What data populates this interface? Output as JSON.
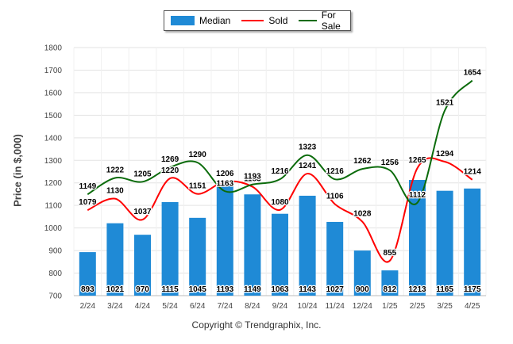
{
  "chart_data": {
    "type": "bar",
    "categories": [
      "2/24",
      "3/24",
      "4/24",
      "5/24",
      "6/24",
      "7/24",
      "8/24",
      "9/24",
      "10/24",
      "11/24",
      "12/24",
      "1/25",
      "2/25",
      "3/25",
      "4/25"
    ],
    "series": [
      {
        "name": "Median",
        "kind": "bar",
        "color": "#1f8ad6",
        "values": [
          893,
          1021,
          970,
          1115,
          1045,
          1193,
          1149,
          1063,
          1143,
          1027,
          900,
          812,
          1213,
          1165,
          1175
        ]
      },
      {
        "name": "Sold",
        "kind": "line",
        "color": "#ff0000",
        "values": [
          1079,
          1130,
          1037,
          1220,
          1151,
          1206,
          1183,
          1080,
          1241,
          1106,
          1028,
          855,
          1265,
          1294,
          1214
        ]
      },
      {
        "name": "For Sale",
        "kind": "line",
        "color": "#0b6b0b",
        "values": [
          1149,
          1222,
          1205,
          1269,
          1290,
          1163,
          1193,
          1216,
          1323,
          1216,
          1262,
          1256,
          1112,
          1521,
          1654
        ]
      }
    ],
    "ylabel": "Price (in $,000)",
    "xlabel": "",
    "ylim": [
      700,
      1800
    ],
    "yticks": [
      700,
      800,
      900,
      1000,
      1100,
      1200,
      1300,
      1400,
      1500,
      1600,
      1700,
      1800
    ],
    "grid": true,
    "legend": "top-center"
  },
  "copyright": "Copyright © Trendgraphix, Inc."
}
